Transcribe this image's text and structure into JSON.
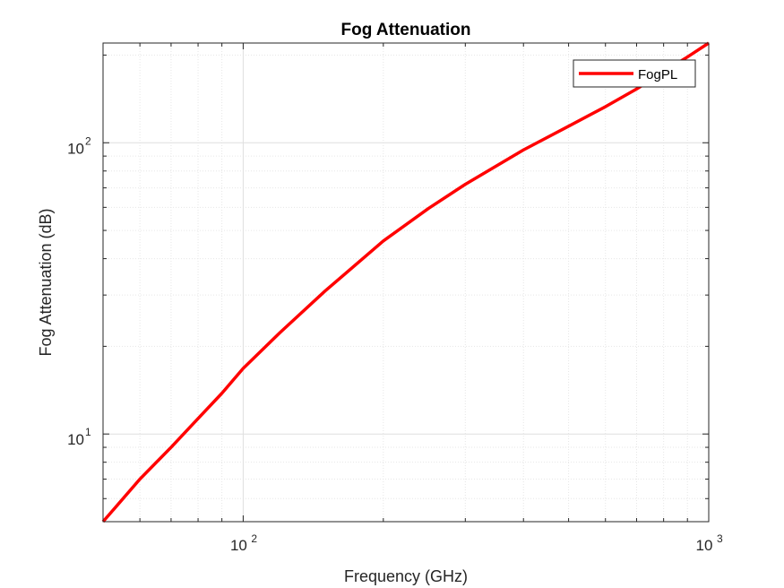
{
  "colors": {
    "series": "#ff0000",
    "axes": "#262626",
    "grid_major": "#dfdfdf",
    "grid_minor": "#e6e6e6"
  },
  "chart_data": {
    "type": "line",
    "title": "Fog Attenuation",
    "xlabel": "Frequency (GHz)",
    "ylabel": "Fog Attenuation (dB)",
    "x_scale": "log",
    "y_scale": "log",
    "xlim": [
      50,
      1000
    ],
    "ylim": [
      5,
      220
    ],
    "grid": "on (major and minor)",
    "legend_location": "top-right",
    "x_ticks": [
      {
        "base": "10",
        "exp": "2",
        "value": 100
      },
      {
        "base": "10",
        "exp": "3",
        "value": 1000
      }
    ],
    "y_ticks": [
      {
        "base": "10",
        "exp": "1",
        "value": 10
      },
      {
        "base": "10",
        "exp": "2",
        "value": 100
      }
    ],
    "series": [
      {
        "name": "FogPL",
        "color": "#ff0000",
        "x": [
          50,
          60,
          70,
          80,
          90,
          100,
          120,
          150,
          200,
          250,
          300,
          400,
          500,
          600,
          700,
          800,
          900,
          1000
        ],
        "y": [
          5,
          7,
          9,
          11.3,
          13.8,
          16.8,
          22.3,
          31,
          46,
          59.5,
          72,
          94.5,
          114,
          133,
          153,
          175,
          197,
          220
        ]
      }
    ]
  }
}
